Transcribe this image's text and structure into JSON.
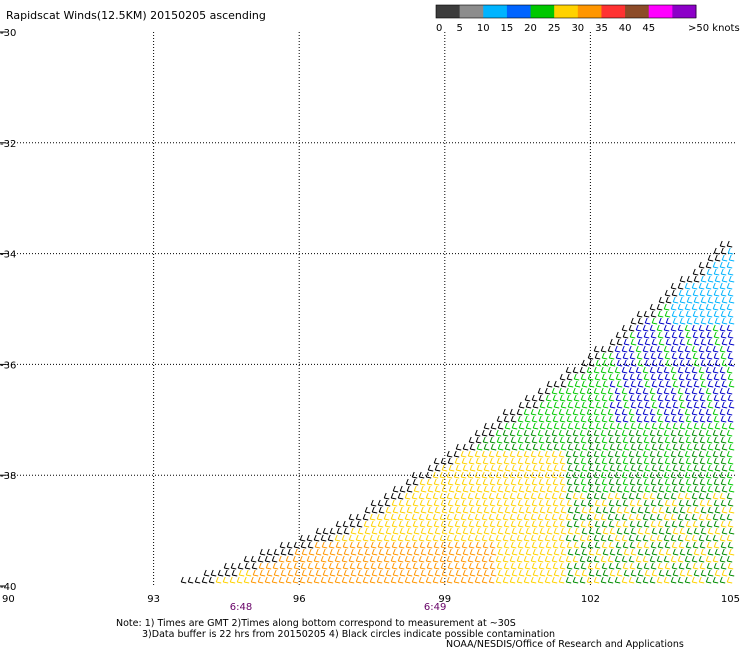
{
  "chart_data": {
    "type": "scatter",
    "title": "Rapidscat Winds(12.5KM) 20150205 ascending",
    "x_ticks": [
      "90",
      "93",
      "96",
      "99",
      "102",
      "105"
    ],
    "y_ticks": [
      "-30",
      "-32",
      "-34",
      "-36",
      "-38",
      "-40"
    ],
    "xlim": [
      90,
      105
    ],
    "ylim": [
      -40,
      -30
    ],
    "grid": true,
    "legend": {
      "placement": "top-right",
      "labels": [
        "0",
        "5",
        "10",
        "15",
        "20",
        "25",
        "30",
        "35",
        "40",
        "45",
        ">50 knots"
      ],
      "colors": [
        "#3c3c3c",
        "#8c8c8c",
        "#00b4ff",
        "#0064ff",
        "#00c800",
        "#ffd200",
        "#ff9600",
        "#ff3232",
        "#8c4b28",
        "#ff00ff",
        "#8c00c8"
      ]
    },
    "time_labels": [
      {
        "text": "6:48",
        "lon": 94.8
      },
      {
        "text": "6:49",
        "lon": 98.8
      }
    ],
    "swath": {
      "edge_points": [
        [
          93.3,
          -40
        ],
        [
          97,
          -38.8
        ],
        [
          99.5,
          -37.3
        ],
        [
          102,
          -35.8
        ],
        [
          105,
          -33.6
        ]
      ],
      "wind_bands": [
        {
          "knots": 5,
          "color": "#000000",
          "region": "swath edge"
        },
        {
          "knots": 22,
          "color": "#ffd200",
          "region": "south"
        },
        {
          "knots": 27,
          "color": "#ff9600",
          "region": "south-central"
        },
        {
          "knots": 16,
          "color": "#008c00",
          "region": "central"
        },
        {
          "knots": 18,
          "color": "#00c800",
          "region": "central-north"
        },
        {
          "knots": 12,
          "color": "#0000c8",
          "region": "northeast"
        },
        {
          "knots": 10,
          "color": "#00b4ff",
          "region": "far northeast"
        }
      ]
    }
  },
  "notes": {
    "line1": "Note: 1) Times are GMT 2)Times along bottom correspond to measurement at ~30S",
    "line2": "3)Data buffer is 22 hrs from 20150205 4) Black circles indicate possible contamination",
    "line3": "NOAA/NESDIS/Office of Research and Applications"
  }
}
